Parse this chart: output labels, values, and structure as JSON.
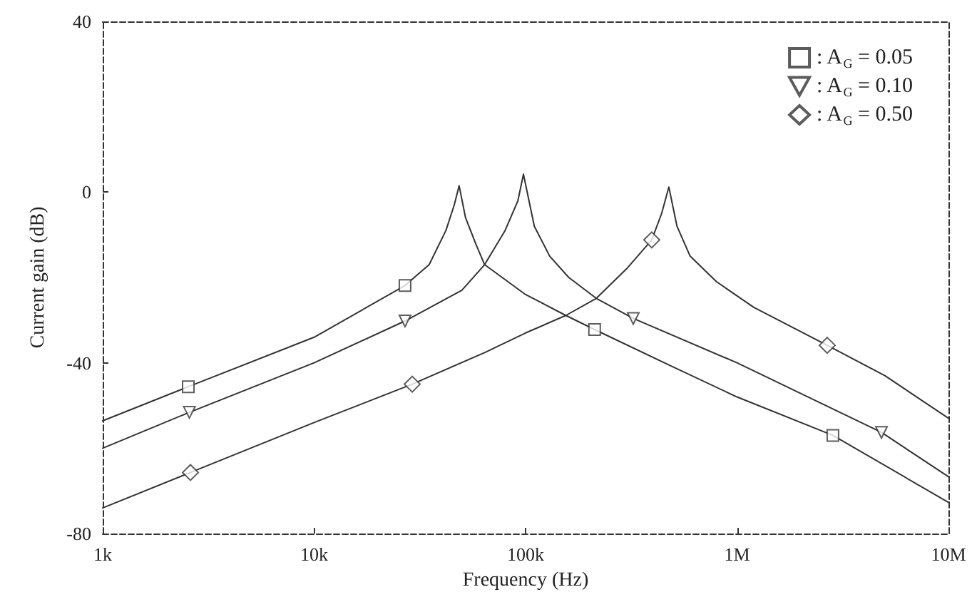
{
  "chart_data": {
    "type": "line",
    "xlabel": "Frequency (Hz)",
    "ylabel": "Current gain (dB)",
    "log": "x",
    "xlim": [
      1000,
      10000000
    ],
    "xticks": [
      {
        "value": 1000,
        "label": "1k"
      },
      {
        "value": 10000,
        "label": "10k"
      },
      {
        "value": 100000,
        "label": "100k"
      },
      {
        "value": 1000000,
        "label": "1M"
      },
      {
        "value": 10000000,
        "label": "10M"
      }
    ],
    "ylim": [
      -80,
      40
    ],
    "yticks": [
      -80,
      -40,
      0,
      40
    ],
    "grid": false,
    "legend": "top right",
    "line_style": "solid",
    "series": [
      {
        "color": "#333333",
        "marker": "none",
        "x": [
          1000,
          2540,
          10000,
          26900,
          35000,
          42000,
          46000,
          48500,
          52000,
          58000,
          64000,
          100000,
          155000,
          212000,
          500000,
          1000000,
          2840000,
          10000000
        ],
        "values": [
          -53.6,
          -45.6,
          -34,
          -21.9,
          -17,
          -9,
          -3,
          1.5,
          -6,
          -12,
          -17,
          -24,
          -28.9,
          -32.2,
          -41,
          -48,
          -57,
          -72.7
        ]
      },
      {
        "color": "#333333",
        "marker": "none",
        "x": [
          1000,
          2570,
          10000,
          26900,
          50000,
          64000,
          80000,
          92000,
          97700,
          110000,
          130000,
          160000,
          216000,
          323000,
          1000000,
          4820000,
          10000000
        ],
        "values": [
          -60,
          -51.6,
          -40,
          -30.2,
          -23,
          -17,
          -9,
          -2,
          4.2,
          -8,
          -15,
          -20,
          -24.9,
          -29.6,
          -40,
          -56.3,
          -66.7
        ]
      },
      {
        "color": "#333333",
        "marker": "none",
        "x": [
          1000,
          2600,
          10000,
          29100,
          64000,
          100000,
          155000,
          216000,
          300000,
          395000,
          440000,
          476000,
          520000,
          600000,
          800000,
          1200000,
          2670000,
          5000000,
          10000000
        ],
        "values": [
          -74,
          -65.7,
          -54,
          -45,
          -37.6,
          -33,
          -28.9,
          -24.9,
          -18,
          -11.2,
          -5,
          1.2,
          -8,
          -15,
          -21,
          -27,
          -35.9,
          -43,
          -53
        ]
      },
      {
        "type": "scatter",
        "name": ": A$_{G}$ = 0.05",
        "color": "#333333",
        "marker": "square",
        "x": [
          2540,
          26900,
          212000,
          2840000
        ],
        "values": [
          -45.6,
          -21.9,
          -32.2,
          -57
        ]
      },
      {
        "type": "scatter",
        "name": ": A$_{G}$ = 0.10",
        "color": "#333333",
        "marker": "triangle",
        "x": [
          2570,
          26900,
          323000,
          4820000
        ],
        "values": [
          -51.6,
          -30.2,
          -29.6,
          -56.3
        ]
      },
      {
        "type": "scatter",
        "name": ": A$_{G}$ = 0.50",
        "color": "#333333",
        "marker": "diamond",
        "x": [
          2600,
          29100,
          395000,
          2670000
        ],
        "values": [
          -65.7,
          -45,
          -11.2,
          -35.9
        ]
      }
    ]
  }
}
